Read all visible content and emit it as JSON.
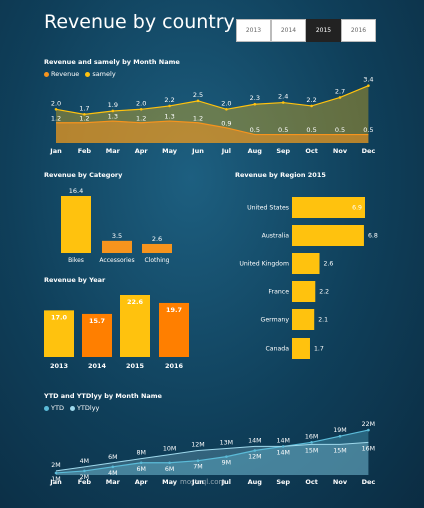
{
  "header": {
    "title": "Revenue by country"
  },
  "year_slicer": {
    "options": [
      "2013",
      "2014",
      "2015",
      "2016"
    ],
    "selected": "2015"
  },
  "colors": {
    "orange": "#f7941d",
    "yellow": "#ffc20e",
    "teal": "#5bbbd8",
    "deep_orange": "#ff7f00"
  },
  "watermark": "mostaql.com",
  "chart_data": [
    {
      "id": "rev_month",
      "type": "area",
      "title": "Revenue and samely by Month Name",
      "categories": [
        "Jan",
        "Feb",
        "Mar",
        "Apr",
        "May",
        "Jun",
        "Jul",
        "Aug",
        "Sep",
        "Oct",
        "Nov",
        "Dec"
      ],
      "series": [
        {
          "name": "Revenue",
          "color": "#f7941d",
          "values": [
            1.2,
            1.2,
            1.3,
            1.2,
            1.3,
            1.2,
            0.9,
            0.5,
            0.5,
            0.5,
            0.5,
            0.5
          ]
        },
        {
          "name": "samely",
          "color": "#ffc20e",
          "values": [
            2.0,
            1.7,
            1.9,
            2.0,
            2.2,
            2.5,
            2.0,
            2.3,
            2.4,
            2.2,
            2.7,
            3.4
          ]
        }
      ],
      "legend": "top-left"
    },
    {
      "id": "rev_category",
      "type": "bar",
      "title": "Revenue by Category",
      "categories": [
        "Bikes",
        "Accessories",
        "Clothing"
      ],
      "values": [
        16.4,
        3.5,
        2.6
      ],
      "colors": [
        "#ffc20e",
        "#f7941d",
        "#f7941d"
      ]
    },
    {
      "id": "rev_year",
      "type": "bar",
      "title": "Revenue by Year",
      "categories": [
        "2013",
        "2014",
        "2015",
        "2016"
      ],
      "values": [
        17.0,
        15.7,
        22.6,
        19.7
      ],
      "colors": [
        "#ffc20e",
        "#ff7f00",
        "#ffc20e",
        "#ff7f00"
      ]
    },
    {
      "id": "rev_region",
      "type": "bar",
      "orientation": "horizontal",
      "title": "Revenue by Region 2015",
      "categories": [
        "United States",
        "Australia",
        "United Kingdom",
        "France",
        "Germany",
        "Canada"
      ],
      "values": [
        6.9,
        6.8,
        2.6,
        2.2,
        2.1,
        1.7
      ],
      "color": "#ffc20e"
    },
    {
      "id": "ytd",
      "type": "area",
      "title": "YTD and YTDlyy by Month Name",
      "categories": [
        "Jan",
        "Feb",
        "Mar",
        "Apr",
        "May",
        "Jun",
        "Jul",
        "Aug",
        "Sep",
        "Oct",
        "Nov",
        "Dec"
      ],
      "series": [
        {
          "name": "YTD",
          "color": "#5bbbd8",
          "values": [
            1,
            2,
            4,
            6,
            6,
            7,
            9,
            12,
            14,
            16,
            19,
            22
          ]
        },
        {
          "name": "YTDlyy",
          "color": "#9fd9ec",
          "values": [
            2,
            4,
            6,
            8,
            10,
            12,
            13,
            14,
            14,
            15,
            15,
            16
          ]
        }
      ],
      "value_suffix": "M",
      "legend": "top-left"
    }
  ]
}
